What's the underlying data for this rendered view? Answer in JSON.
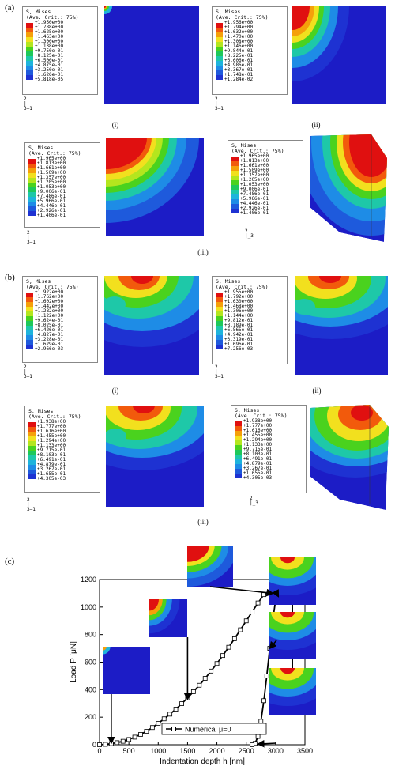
{
  "section_labels": {
    "a": "(a)",
    "b": "(b)",
    "c": "(c)"
  },
  "sub_labels": {
    "i": "(i)",
    "ii": "(ii)",
    "iii": "(iii)"
  },
  "axis_triad": {
    "up": "2",
    "right": "3—1",
    "right_b": "3"
  },
  "legends": {
    "a_i": {
      "title": [
        "S, Mises",
        "(Ave. Crit.: 75%)"
      ],
      "values": [
        "+1.950e+00",
        "+1.788e+00",
        "+1.625e+00",
        "+1.463e+00",
        "+1.300e+00",
        "+1.138e+00",
        "+9.750e-01",
        "+8.125e-01",
        "+6.500e-01",
        "+4.875e-01",
        "+3.250e-01",
        "+1.626e-01",
        "+5.818e-05"
      ]
    },
    "a_ii": {
      "title": [
        "S, Mises",
        "(Ave. Crit.: 75%)"
      ],
      "values": [
        "+1.956e+00",
        "+1.794e+00",
        "+1.632e+00",
        "+1.470e+00",
        "+1.308e+00",
        "+1.146e+00",
        "+9.844e-01",
        "+8.225e-01",
        "+6.606e-01",
        "+4.986e-01",
        "+3.367e-01",
        "+1.748e-01",
        "+1.284e-02"
      ]
    },
    "a_iii_l": {
      "title": [
        "S, Mises",
        "(Ave. Crit.: 75%)"
      ],
      "values": [
        "+1.965e+00",
        "+1.813e+00",
        "+1.661e+00",
        "+1.509e+00",
        "+1.357e+00",
        "+1.205e+00",
        "+1.053e+00",
        "+9.006e-01",
        "+7.486e-01",
        "+5.966e-01",
        "+4.446e-01",
        "+2.926e-01",
        "+1.406e-01"
      ]
    },
    "a_iii_r": {
      "title": [
        "S, Mises",
        "(Ave. Crit.: 75%)"
      ],
      "values": [
        "+1.965e+00",
        "+1.813e+00",
        "+1.661e+00",
        "+1.509e+00",
        "+1.357e+00",
        "+1.205e+00",
        "+1.053e+00",
        "+9.006e-01",
        "+7.486e-01",
        "+5.966e-01",
        "+4.446e-01",
        "+2.926e-01",
        "+1.406e-01"
      ]
    },
    "b_i": {
      "title": [
        "S, Mises",
        "(Ave. Crit.: 75%)"
      ],
      "values": [
        "+1.922e+00",
        "+1.762e+00",
        "+1.602e+00",
        "+1.442e+00",
        "+1.282e+00",
        "+1.122e+00",
        "+9.624e-01",
        "+8.025e-01",
        "+6.426e-01",
        "+4.827e-01",
        "+3.228e-01",
        "+1.629e-01",
        "+2.966e-03"
      ]
    },
    "b_ii": {
      "title": [
        "S, Mises",
        "(Ave. Crit.: 75%)"
      ],
      "values": [
        "+1.955e+00",
        "+1.792e+00",
        "+1.630e+00",
        "+1.468e+00",
        "+1.306e+00",
        "+1.144e+00",
        "+9.812e-01",
        "+8.189e-01",
        "+6.565e-01",
        "+4.942e-01",
        "+3.319e-01",
        "+1.696e-01",
        "+7.256e-03"
      ]
    },
    "b_iii_l": {
      "title": [
        "S, Mises",
        "(Ave. Crit.: 75%)"
      ],
      "values": [
        "+1.938e+00",
        "+1.777e+00",
        "+1.616e+00",
        "+1.455e+00",
        "+1.294e+00",
        "+1.133e+00",
        "+9.715e-01",
        "+8.103e-01",
        "+6.491e-01",
        "+4.879e-01",
        "+3.267e-01",
        "+1.655e-01",
        "+4.305e-03"
      ]
    },
    "b_iii_r": {
      "title": [
        "S, Mises",
        "(Ave. Crit.: 75%)"
      ],
      "values": [
        "+1.938e+00",
        "+1.777e+00",
        "+1.616e+00",
        "+1.455e+00",
        "+1.294e+00",
        "+1.133e+00",
        "+9.715e-01",
        "+8.103e-01",
        "+6.491e-01",
        "+4.879e-01",
        "+3.267e-01",
        "+1.655e-01",
        "+4.305e-03"
      ]
    }
  },
  "colors": {
    "field_blue": "#1c1cc6",
    "contour": [
      "#e01010",
      "#f25a0c",
      "#f5a00a",
      "#f2e01e",
      "#b4e61e",
      "#4ad21e",
      "#1ec85a",
      "#1ec8a8",
      "#1eb4dc",
      "#1e8ce6",
      "#1e5adc",
      "#1e32d2",
      "#1c1cc6"
    ]
  },
  "chart_data": {
    "type": "line",
    "xlabel": "Indentation depth  h [nm]",
    "ylabel": "Load P [μN]",
    "xlim": [
      0,
      3500
    ],
    "ylim": [
      0,
      1200
    ],
    "xticks": [
      0,
      500,
      1000,
      1500,
      2000,
      2500,
      3000,
      3500
    ],
    "yticks": [
      0,
      200,
      400,
      600,
      800,
      1000,
      1200
    ],
    "legend": "top-left inside lower half",
    "series": [
      {
        "name": "Numerical μ=0",
        "marker": "open-square",
        "x": [
          0,
          100,
          200,
          300,
          400,
          500,
          600,
          700,
          800,
          900,
          1000,
          1100,
          1200,
          1300,
          1400,
          1500,
          1600,
          1700,
          1800,
          1900,
          2000,
          2100,
          2200,
          2300,
          2400,
          2500,
          2600,
          2700,
          2800,
          2900,
          3000,
          3000,
          2950,
          2900,
          2850,
          2800,
          2750,
          2700,
          2650,
          2600
        ],
        "y": [
          0,
          3,
          8,
          15,
          25,
          38,
          55,
          75,
          98,
          125,
          155,
          188,
          222,
          258,
          298,
          340,
          385,
          432,
          482,
          535,
          590,
          648,
          708,
          770,
          835,
          900,
          965,
          1030,
          1090,
          1110,
          1100,
          1050,
          900,
          700,
          500,
          320,
          170,
          60,
          10,
          0
        ]
      }
    ]
  }
}
